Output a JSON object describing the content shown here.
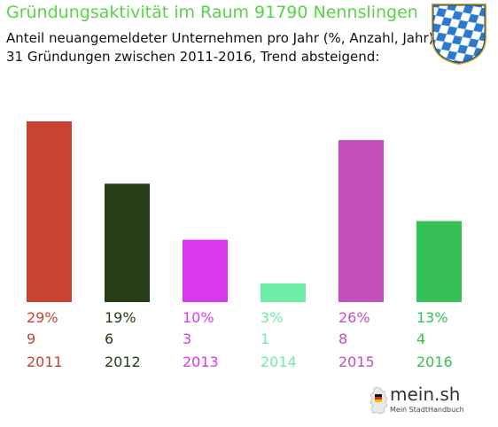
{
  "header": {
    "title": "Gründungsaktivität im Raum 91790 Nennslingen",
    "subtitle_line1": "Anteil neuangemeldeter Unternehmen pro Jahr (%, Anzahl, Jahr)",
    "subtitle_line2": "31 Gründungen zwischen 2011-2016, Trend absteigend:"
  },
  "colors": {
    "title": "#5ad24a",
    "crest_blue": "#2a7ad0",
    "crest_gold": "#c9a43a"
  },
  "logo": {
    "brand": "mein.sh",
    "tagline": "Mein StadtHandbuch"
  },
  "chart_data": {
    "type": "bar",
    "title": "",
    "xlabel": "",
    "ylabel": "",
    "ylim": [
      0,
      29
    ],
    "grid": false,
    "categories": [
      "2011",
      "2012",
      "2013",
      "2014",
      "2015",
      "2016"
    ],
    "values": [
      29,
      19,
      10,
      3,
      26,
      13
    ],
    "counts": [
      9,
      6,
      3,
      1,
      8,
      4
    ],
    "percent_labels": [
      "29%",
      "19%",
      "10%",
      "3%",
      "26%",
      "13%"
    ],
    "count_labels": [
      "9",
      "6",
      "3",
      "1",
      "8",
      "4"
    ],
    "bar_colors": [
      "#c94232",
      "#263d16",
      "#d938ee",
      "#6eeca8",
      "#c44fbc",
      "#35c155"
    ]
  }
}
